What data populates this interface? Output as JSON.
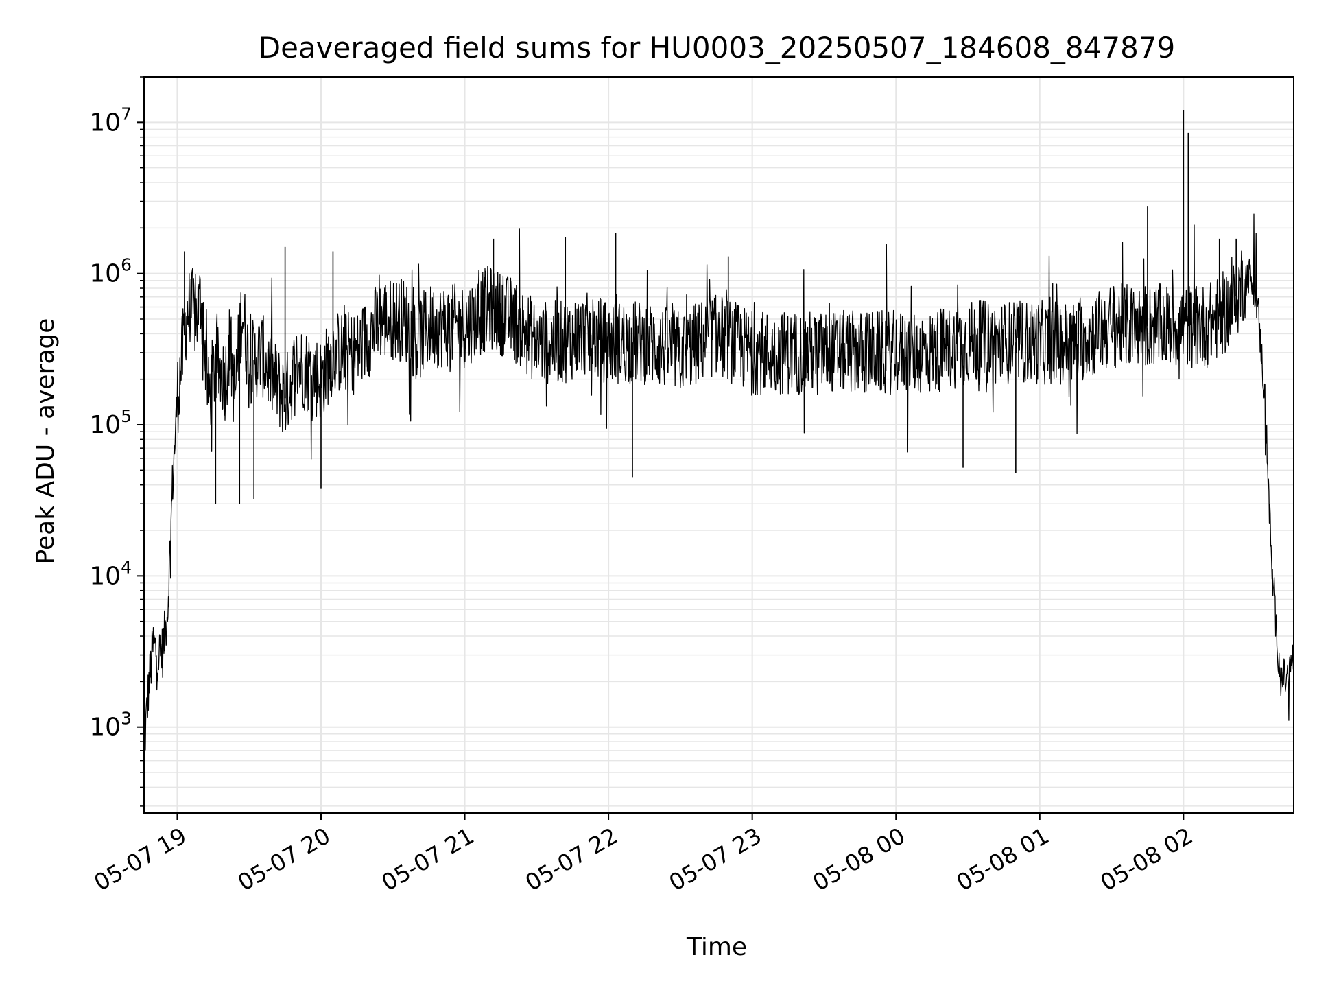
{
  "chart_data": {
    "type": "line",
    "title": "Deaveraged field sums for HU0003_20250507_184608_847879",
    "xlabel": "Time",
    "ylabel": "Peak ADU - average",
    "yscale": "log",
    "ylim": [
      270,
      20000000
    ],
    "xlim": [
      "2025-05-07 18:46:08",
      "2025-05-08 02:46:00"
    ],
    "grid": true,
    "grid_which": "both",
    "line_color": "#000000",
    "grid_color": "#e6e6e6",
    "x_ticks": [
      {
        "label": "05-07 19",
        "time": "2025-05-07 19:00"
      },
      {
        "label": "05-07 20",
        "time": "2025-05-07 20:00"
      },
      {
        "label": "05-07 21",
        "time": "2025-05-07 21:00"
      },
      {
        "label": "05-07 22",
        "time": "2025-05-07 22:00"
      },
      {
        "label": "05-07 23",
        "time": "2025-05-07 23:00"
      },
      {
        "label": "05-08 00",
        "time": "2025-05-08 00:00"
      },
      {
        "label": "05-08 01",
        "time": "2025-05-08 01:00"
      },
      {
        "label": "05-08 02",
        "time": "2025-05-08 02:00"
      }
    ],
    "y_ticks": [
      {
        "base": "10",
        "exp": "3",
        "value": 1000
      },
      {
        "base": "10",
        "exp": "4",
        "value": 10000
      },
      {
        "base": "10",
        "exp": "5",
        "value": 100000
      },
      {
        "base": "10",
        "exp": "6",
        "value": 1000000
      },
      {
        "base": "10",
        "exp": "7",
        "value": 10000000
      }
    ],
    "series": [
      {
        "x": [
          "2025-05-07 18:46:08",
          "2025-05-07 18:48",
          "2025-05-07 18:50",
          "2025-05-07 18:52",
          "2025-05-07 18:54",
          "2025-05-07 18:56",
          "2025-05-07 18:58",
          "2025-05-07 19:00",
          "2025-05-07 19:02",
          "2025-05-07 19:04",
          "2025-05-07 19:06",
          "2025-05-07 19:08",
          "2025-05-07 19:10",
          "2025-05-07 19:13",
          "2025-05-07 19:16",
          "2025-05-07 19:20",
          "2025-05-07 19:22",
          "2025-05-07 19:24",
          "2025-05-07 19:27",
          "2025-05-07 19:30",
          "2025-05-07 19:35",
          "2025-05-07 19:40",
          "2025-05-07 19:45",
          "2025-05-07 19:50",
          "2025-05-07 20:00",
          "2025-05-07 20:05",
          "2025-05-07 20:15",
          "2025-05-07 20:25",
          "2025-05-07 20:35",
          "2025-05-07 20:40",
          "2025-05-07 20:45",
          "2025-05-07 20:55",
          "2025-05-07 21:00",
          "2025-05-07 21:10",
          "2025-05-07 21:20",
          "2025-05-07 21:30",
          "2025-05-07 21:40",
          "2025-05-07 21:50",
          "2025-05-07 22:00",
          "2025-05-07 22:15",
          "2025-05-07 22:30",
          "2025-05-07 22:45",
          "2025-05-07 23:00",
          "2025-05-07 23:15",
          "2025-05-07 23:30",
          "2025-05-07 23:45",
          "2025-05-08 00:00",
          "2025-05-08 00:15",
          "2025-05-08 00:30",
          "2025-05-08 00:45",
          "2025-05-08 01:00",
          "2025-05-08 01:15",
          "2025-05-08 01:30",
          "2025-05-08 01:45",
          "2025-05-08 02:00",
          "2025-05-08 02:10",
          "2025-05-08 02:20",
          "2025-05-08 02:25",
          "2025-05-08 02:28",
          "2025-05-08 02:31",
          "2025-05-08 02:34",
          "2025-05-08 02:37",
          "2025-05-08 02:40",
          "2025-05-08 02:43",
          "2025-05-08 02:46"
        ],
        "y": [
          700,
          1800,
          3500,
          3000,
          3200,
          6000,
          40000,
          150000,
          280000,
          550000,
          600000,
          500000,
          700000,
          150000,
          250000,
          200000,
          350000,
          150000,
          600000,
          250000,
          300000,
          200000,
          150000,
          250000,
          200000,
          300000,
          300000,
          500000,
          500000,
          350000,
          450000,
          450000,
          450000,
          600000,
          500000,
          350000,
          350000,
          400000,
          350000,
          350000,
          300000,
          400000,
          300000,
          300000,
          300000,
          300000,
          300000,
          300000,
          350000,
          350000,
          350000,
          350000,
          450000,
          450000,
          450000,
          450000,
          600000,
          900000,
          1000000,
          600000,
          150000,
          10000,
          2500,
          2000,
          3000
        ],
        "spikes": [
          {
            "x": "2025-05-07 19:03",
            "y": 1400000
          },
          {
            "x": "2025-05-07 19:45",
            "y": 1500000
          },
          {
            "x": "2025-05-07 20:05",
            "y": 1400000
          },
          {
            "x": "2025-05-07 21:12",
            "y": 1700000
          },
          {
            "x": "2025-05-07 21:42",
            "y": 1750000
          },
          {
            "x": "2025-05-07 22:03",
            "y": 1850000
          },
          {
            "x": "2025-05-07 22:50",
            "y": 1300000
          },
          {
            "x": "2025-05-08 01:45",
            "y": 2800000
          },
          {
            "x": "2025-05-08 02:00",
            "y": 12000000
          },
          {
            "x": "2025-05-08 02:02",
            "y": 8500000
          },
          {
            "x": "2025-05-08 02:15",
            "y": 1700000
          },
          {
            "x": "2025-05-08 02:22",
            "y": 1700000
          }
        ],
        "dips": [
          {
            "x": "2025-05-07 19:16",
            "y": 30000
          },
          {
            "x": "2025-05-07 19:26",
            "y": 30000
          },
          {
            "x": "2025-05-07 19:32",
            "y": 32000
          },
          {
            "x": "2025-05-07 20:00",
            "y": 38000
          },
          {
            "x": "2025-05-07 22:10",
            "y": 45000
          },
          {
            "x": "2025-05-08 00:50",
            "y": 48000
          },
          {
            "x": "2025-05-08 00:28",
            "y": 52000
          }
        ]
      }
    ]
  }
}
